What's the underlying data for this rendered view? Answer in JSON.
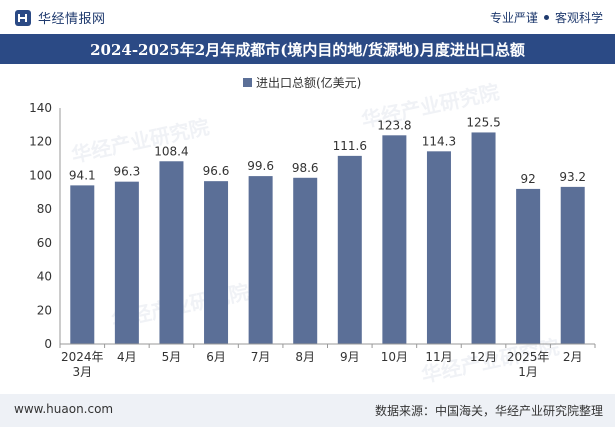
{
  "header": {
    "brand": "华经情报网",
    "tagline_left": "专业严谨",
    "tagline_right": "客观科学"
  },
  "watermark": "华经产业研究院",
  "footer": {
    "site": "www.huaon.com",
    "source": "数据来源：中国海关，华经产业研究院整理"
  },
  "colors": {
    "bar": "#5b6f97",
    "title_bg": "#2b4a85",
    "footer_bg": "#eef1f6"
  },
  "chart_data": {
    "type": "bar",
    "title": "2024-2025年2月年成都市(境内目的地/货源地)月度进出口总额",
    "legend": "进出口总额(亿美元)",
    "legend_position": "top-center",
    "categories": [
      "2024年\n3月",
      "4月",
      "5月",
      "6月",
      "7月",
      "8月",
      "9月",
      "10月",
      "11月",
      "12月",
      "2025年\n1月",
      "2月"
    ],
    "values": [
      94.1,
      96.3,
      108.4,
      96.6,
      99.6,
      98.6,
      111.6,
      123.8,
      114.3,
      125.5,
      92,
      93.2
    ],
    "value_labels": [
      "94.1",
      "96.3",
      "108.4",
      "96.6",
      "99.6",
      "98.6",
      "111.6",
      "123.8",
      "114.3",
      "125.5",
      "92",
      "93.2"
    ],
    "yticks": [
      "0",
      "20",
      "40",
      "60",
      "80",
      "100",
      "120",
      "140"
    ],
    "ylim": [
      0,
      140
    ],
    "xlabel": "",
    "ylabel": "",
    "grid": false
  }
}
